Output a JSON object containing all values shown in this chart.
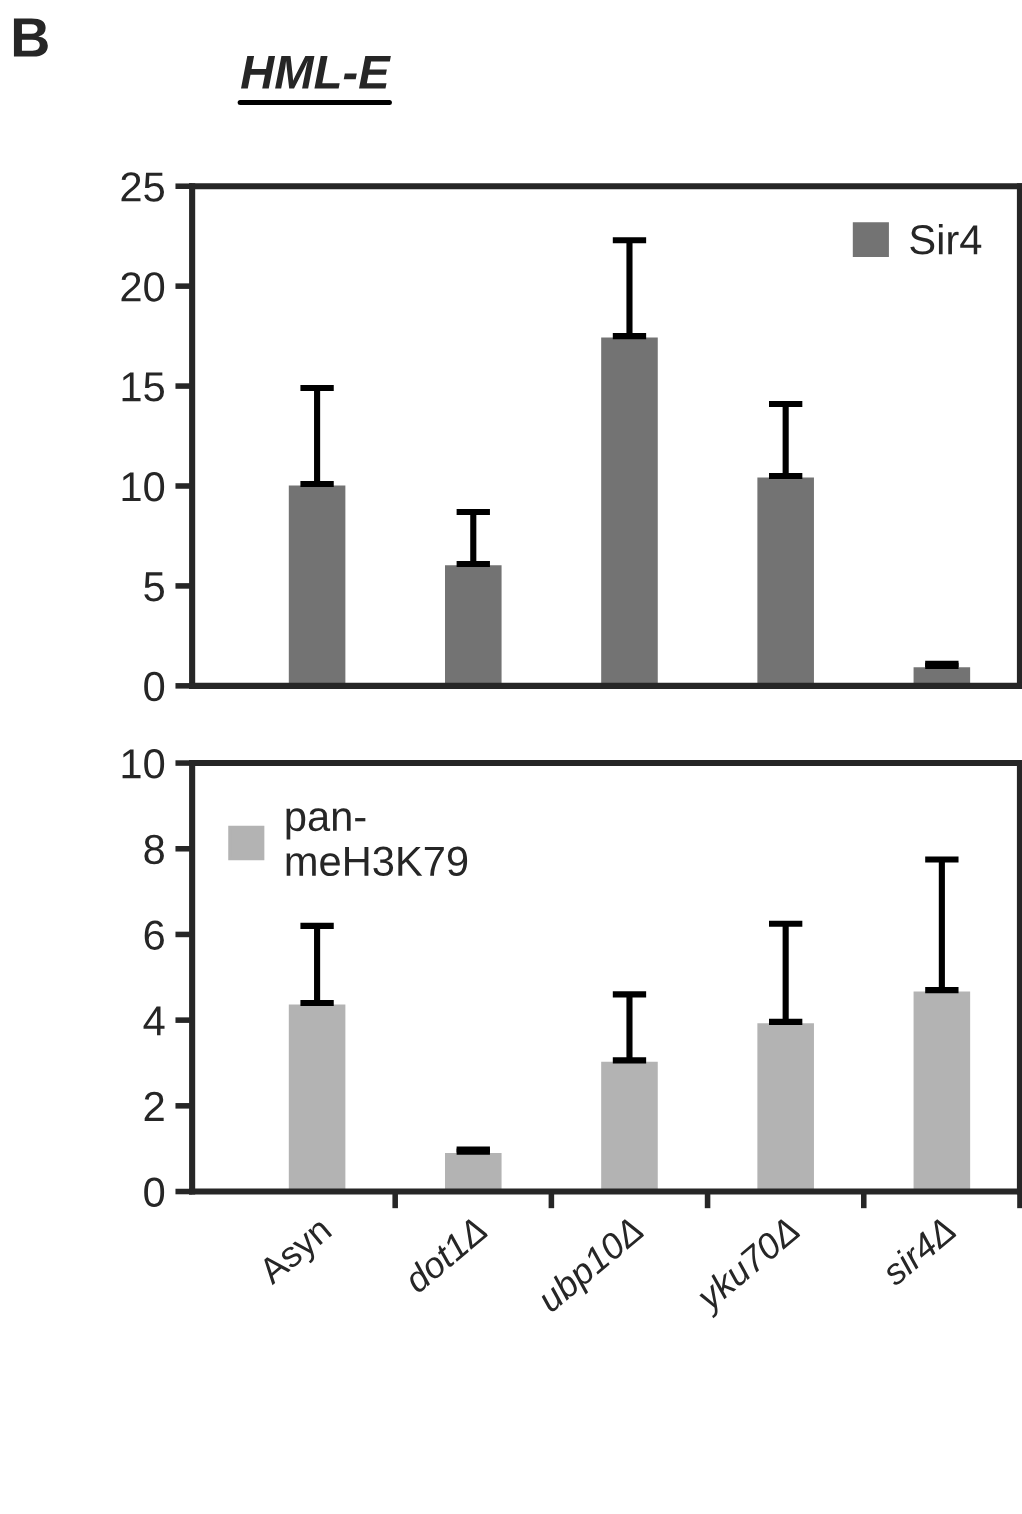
{
  "chart_data": [
    {
      "type": "bar",
      "title": "HML-E",
      "annotations": [
        "B"
      ],
      "categories": [
        null,
        null,
        null,
        null,
        null
      ],
      "series": [
        {
          "name": "Sir4",
          "color": "#737373",
          "values": [
            10.1,
            6.1,
            17.5,
            10.5,
            1.0
          ],
          "errors": [
            [
              10.1,
              14.9
            ],
            [
              6.1,
              8.7
            ],
            [
              17.5,
              22.3
            ],
            [
              10.5,
              14.1
            ],
            [
              1.0,
              1.1
            ]
          ]
        }
      ],
      "ylim": [
        0,
        25
      ],
      "yticks": [
        0,
        5,
        10,
        15,
        20,
        25
      ],
      "tick_labels": "y",
      "legend": "top right",
      "grid": false
    },
    {
      "type": "bar",
      "categories": [
        "Asyn",
        "dot1Δ",
        "ubp10Δ",
        "yku70Δ",
        "sir4Δ"
      ],
      "series": [
        {
          "name": "pan-\nmeH3K79",
          "color": "#b3b3b3",
          "values": [
            4.4,
            0.93,
            3.06,
            3.96,
            4.7
          ],
          "errors": [
            [
              4.4,
              6.2
            ],
            [
              0.93,
              0.98
            ],
            [
              3.06,
              4.6
            ],
            [
              3.96,
              6.25
            ],
            [
              4.7,
              7.75
            ]
          ]
        }
      ],
      "ylim": [
        0,
        10
      ],
      "yticks": [
        0,
        2,
        4,
        6,
        8,
        10
      ],
      "legend": "top left",
      "grid": false
    }
  ]
}
